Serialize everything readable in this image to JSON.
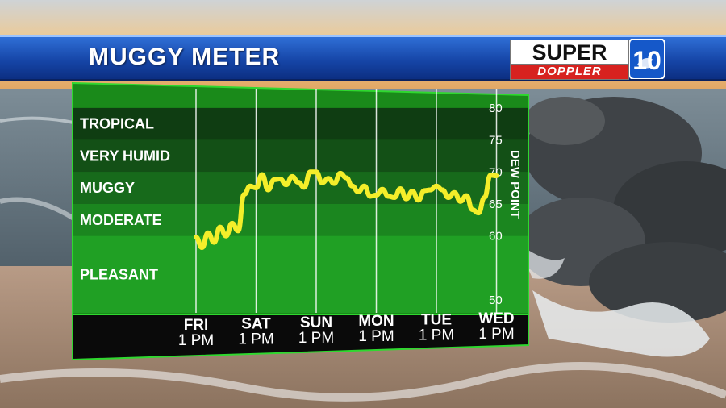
{
  "header": {
    "title": "MUGGY METER",
    "logo_top": "SUPER",
    "logo_bottom": "DOPPLER",
    "logo_number": "10"
  },
  "colors": {
    "header_blue": "#1a4fb5",
    "panel_green": "#1c9a1c",
    "line_yellow": "#f4ee2a",
    "footer_black": "#0a0a0a"
  },
  "chart_data": {
    "type": "line",
    "ylabel": "DEW POINT",
    "ylim": [
      48,
      82
    ],
    "y_ticks": [
      "80",
      "75",
      "70",
      "65",
      "60",
      "50"
    ],
    "y_tick_values": [
      80,
      75,
      70,
      65,
      60,
      50
    ],
    "bands": [
      {
        "name": "TROPICAL",
        "from": 75,
        "to": 80
      },
      {
        "name": "VERY HUMID",
        "from": 70,
        "to": 75
      },
      {
        "name": "MUGGY",
        "from": 65,
        "to": 70
      },
      {
        "name": "MODERATE",
        "from": 60,
        "to": 65
      },
      {
        "name": "PLEASANT",
        "from": 48,
        "to": 60
      }
    ],
    "categories": [
      {
        "day": "FRI",
        "time": "1 PM"
      },
      {
        "day": "SAT",
        "time": "1 PM"
      },
      {
        "day": "SUN",
        "time": "1 PM"
      },
      {
        "day": "MON",
        "time": "1 PM"
      },
      {
        "day": "TUE",
        "time": "1 PM"
      },
      {
        "day": "WED",
        "time": "1 PM"
      }
    ],
    "series": [
      {
        "x": [
          0,
          0.1,
          0.2,
          0.3,
          0.4,
          0.5,
          0.6,
          0.7,
          0.8,
          0.9,
          1.0,
          1.1,
          1.2,
          1.3,
          1.4,
          1.5,
          1.6,
          1.7,
          1.8,
          1.9,
          2.0,
          2.1,
          2.2,
          2.3,
          2.4,
          2.5,
          2.6,
          2.7,
          2.8,
          2.9,
          3.0,
          3.1,
          3.2,
          3.3,
          3.4,
          3.5,
          3.6,
          3.7,
          3.8,
          3.9,
          4.0,
          4.1,
          4.2,
          4.3,
          4.4,
          4.5,
          4.6,
          4.7,
          4.8,
          4.9,
          5.0
        ],
        "values": [
          59.8,
          58.2,
          60.5,
          59.0,
          61.4,
          60.0,
          62.0,
          60.8,
          66.5,
          67.8,
          67.5,
          69.6,
          67.2,
          68.8,
          68.9,
          68.0,
          69.3,
          68.4,
          67.6,
          70.0,
          70.0,
          68.3,
          69.0,
          68.2,
          69.8,
          69.1,
          67.8,
          66.9,
          67.8,
          66.2,
          66.4,
          67.3,
          66.2,
          66.0,
          67.4,
          65.8,
          67.0,
          65.6,
          67.1,
          67.2,
          67.8,
          67.2,
          66.0,
          66.8,
          65.4,
          66.3,
          64.1,
          63.6,
          66.0,
          69.5,
          69.4
        ]
      }
    ]
  }
}
